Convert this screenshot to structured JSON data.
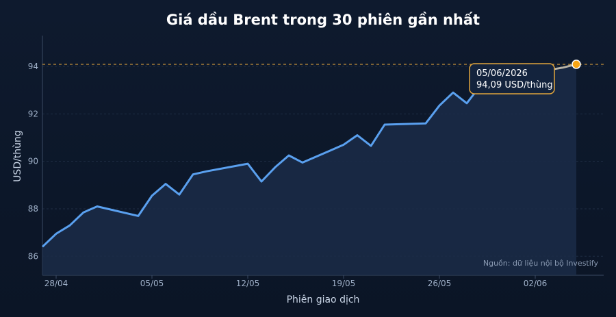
{
  "chart_data": {
    "type": "line",
    "title": "Giá dầu Brent trong 30 phiên gần nhất",
    "xlabel": "Phiên giao dịch",
    "ylabel": "USD/thùng",
    "source": "Nguồn: dữ liệu nội bộ Investify",
    "ylim": [
      85.2,
      95.3
    ],
    "yticks": [
      86,
      88,
      90,
      92,
      94
    ],
    "xtick_labels": [
      "28/04",
      "05/05",
      "12/05",
      "19/05",
      "26/05",
      "02/06"
    ],
    "xtick_indices": [
      1,
      8,
      15,
      22,
      29,
      36
    ],
    "x_domain": [
      0,
      41
    ],
    "grid": true,
    "reference_line": 94.09,
    "colors": {
      "line": "#5aa0ef",
      "last_segment": "#b9b3a4",
      "reference": "#e0a43c",
      "marker": "#f7a414"
    },
    "x_index": [
      0,
      1,
      2,
      3,
      4,
      7,
      8,
      9,
      10,
      11,
      12,
      15,
      16,
      17,
      18,
      19,
      20,
      21,
      22,
      23,
      24,
      25,
      28,
      29,
      30,
      31,
      32,
      33,
      36,
      37,
      38,
      39
    ],
    "values": [
      86.4,
      86.95,
      87.3,
      87.85,
      88.1,
      87.7,
      88.55,
      89.05,
      88.6,
      89.45,
      89.58,
      89.9,
      89.15,
      89.75,
      90.25,
      89.95,
      90.2,
      90.45,
      90.7,
      91.1,
      90.65,
      91.55,
      91.6,
      92.35,
      92.9,
      92.45,
      93.2,
      93.45,
      93.65,
      93.85,
      93.95,
      94.09
    ],
    "tooltip": {
      "date": "05/06/2026",
      "value": "94,09 USD/thùng"
    }
  }
}
